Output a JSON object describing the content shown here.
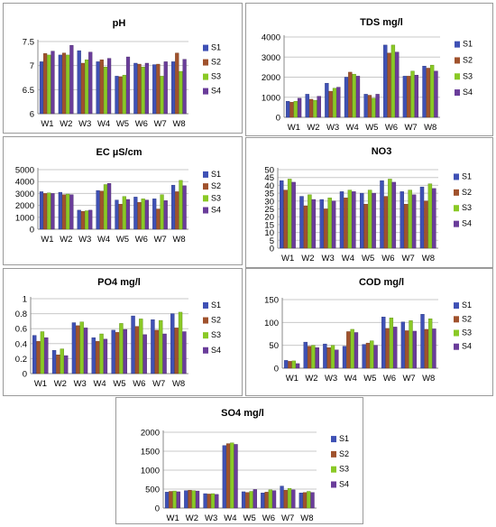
{
  "series_colors": [
    "#3f51b5",
    "#a0522d",
    "#8ac926",
    "#6a3d9a"
  ],
  "chart_data": [
    {
      "id": "ph",
      "type": "bar",
      "title": "pH",
      "categories": [
        "W1",
        "W2",
        "W3",
        "W4",
        "W5",
        "W6",
        "W7",
        "W8"
      ],
      "ylim": [
        6,
        7.5
      ],
      "yticks": [
        "6",
        "6.5",
        "7",
        "7.5"
      ],
      "ytick_values": [
        6,
        6.5,
        7,
        7.5
      ],
      "series": [
        {
          "name": "S1",
          "values": [
            7.08,
            7.22,
            7.31,
            7.08,
            6.78,
            7.05,
            7.02,
            7.08
          ]
        },
        {
          "name": "S2",
          "values": [
            7.25,
            7.26,
            7.05,
            7.12,
            6.77,
            7.03,
            7.03,
            7.26
          ]
        },
        {
          "name": "S3",
          "values": [
            7.22,
            7.22,
            7.12,
            6.97,
            6.8,
            6.97,
            6.78,
            6.88
          ]
        },
        {
          "name": "S4",
          "values": [
            7.3,
            7.42,
            7.28,
            7.15,
            7.18,
            7.05,
            7.08,
            7.13
          ]
        }
      ],
      "legend": "right"
    },
    {
      "id": "tds",
      "type": "bar",
      "title": "TDS  mg/l",
      "categories": [
        "W1",
        "W2",
        "W3",
        "W4",
        "W5",
        "W6",
        "W7",
        "W8"
      ],
      "ylim": [
        0,
        4000
      ],
      "yticks": [
        "0",
        "1000",
        "2000",
        "3000",
        "4000"
      ],
      "ytick_values": [
        0,
        1000,
        2000,
        3000,
        4000
      ],
      "series": [
        {
          "name": "S1",
          "values": [
            800,
            1150,
            1700,
            2000,
            1150,
            3600,
            2050,
            2550
          ]
        },
        {
          "name": "S2",
          "values": [
            750,
            900,
            1300,
            2250,
            1100,
            3200,
            2050,
            2450
          ]
        },
        {
          "name": "S3",
          "values": [
            800,
            850,
            1450,
            2150,
            950,
            3600,
            2300,
            2600
          ]
        },
        {
          "name": "S4",
          "values": [
            950,
            1050,
            1500,
            2050,
            1150,
            3250,
            2100,
            2300
          ]
        }
      ],
      "legend": "right"
    },
    {
      "id": "ec",
      "type": "bar",
      "title": "EC  µS/cm",
      "categories": [
        "W1",
        "W2",
        "W3",
        "W4",
        "W5",
        "W6",
        "W7",
        "W8"
      ],
      "ylim": [
        0,
        5000
      ],
      "yticks": [
        "0",
        "1000",
        "2000",
        "3000",
        "4000",
        "5000"
      ],
      "ytick_values": [
        0,
        1000,
        2000,
        3000,
        4000,
        5000
      ],
      "series": [
        {
          "name": "S1",
          "values": [
            3150,
            3100,
            1600,
            3250,
            2450,
            2700,
            2550,
            3700
          ]
        },
        {
          "name": "S2",
          "values": [
            3000,
            2900,
            1500,
            3200,
            2100,
            2250,
            1700,
            3150
          ]
        },
        {
          "name": "S3",
          "values": [
            3050,
            2950,
            1550,
            3750,
            2750,
            2550,
            2900,
            4100
          ]
        },
        {
          "name": "S4",
          "values": [
            3000,
            2900,
            1600,
            3850,
            2500,
            2450,
            2400,
            3650
          ]
        }
      ],
      "legend": "right"
    },
    {
      "id": "no3",
      "type": "bar",
      "title": "NO3",
      "categories": [
        "W1",
        "W2",
        "W3",
        "W4",
        "W5",
        "W6",
        "W7",
        "W8"
      ],
      "ylim": [
        0,
        50
      ],
      "yticks": [
        "0",
        "5",
        "10",
        "15",
        "20",
        "25",
        "30",
        "35",
        "40",
        "45",
        "50"
      ],
      "ytick_values": [
        0,
        5,
        10,
        15,
        20,
        25,
        30,
        35,
        40,
        45,
        50
      ],
      "series": [
        {
          "name": "S1",
          "values": [
            43,
            33,
            31,
            36,
            35,
            43,
            36,
            39
          ]
        },
        {
          "name": "S2",
          "values": [
            37,
            27,
            25,
            32,
            28,
            33,
            28,
            30
          ]
        },
        {
          "name": "S3",
          "values": [
            44,
            34,
            32,
            37,
            37,
            44,
            37,
            41
          ]
        },
        {
          "name": "S4",
          "values": [
            42,
            31,
            30,
            36,
            35,
            42,
            34,
            38
          ]
        }
      ],
      "legend": "right"
    },
    {
      "id": "po4",
      "type": "bar",
      "title": "PO4  mg/l",
      "categories": [
        "W1",
        "W2",
        "W3",
        "W4",
        "W5",
        "W6",
        "W7",
        "W8"
      ],
      "ylim": [
        0,
        1
      ],
      "yticks": [
        "0",
        "0.2",
        "0.4",
        "0.6",
        "0.8",
        "1"
      ],
      "ytick_values": [
        0,
        0.2,
        0.4,
        0.6,
        0.8,
        1
      ],
      "series": [
        {
          "name": "S1",
          "values": [
            0.51,
            0.31,
            0.68,
            0.48,
            0.58,
            0.77,
            0.72,
            0.8
          ]
        },
        {
          "name": "S2",
          "values": [
            0.43,
            0.25,
            0.64,
            0.43,
            0.55,
            0.63,
            0.58,
            0.61
          ]
        },
        {
          "name": "S3",
          "values": [
            0.56,
            0.33,
            0.69,
            0.53,
            0.67,
            0.73,
            0.71,
            0.82
          ]
        },
        {
          "name": "S4",
          "values": [
            0.48,
            0.24,
            0.61,
            0.46,
            0.59,
            0.52,
            0.53,
            0.56
          ]
        }
      ],
      "legend": "right"
    },
    {
      "id": "cod",
      "type": "bar",
      "title": "COD  mg/l",
      "categories": [
        "W1",
        "W2",
        "W3",
        "W4",
        "W5",
        "W6",
        "W7",
        "W8"
      ],
      "ylim": [
        0,
        150
      ],
      "yticks": [
        "0",
        "50",
        "100",
        "150"
      ],
      "ytick_values": [
        0,
        50,
        100,
        150
      ],
      "series": [
        {
          "name": "S1",
          "values": [
            17,
            57,
            53,
            48,
            52,
            112,
            101,
            118
          ]
        },
        {
          "name": "S2",
          "values": [
            15,
            48,
            45,
            80,
            55,
            87,
            82,
            85
          ]
        },
        {
          "name": "S3",
          "values": [
            16,
            50,
            50,
            85,
            60,
            110,
            104,
            108
          ]
        },
        {
          "name": "S4",
          "values": [
            10,
            45,
            40,
            78,
            50,
            90,
            81,
            86
          ]
        }
      ],
      "legend": "right"
    },
    {
      "id": "so4",
      "type": "bar",
      "title": "SO4  mg/l",
      "categories": [
        "W1",
        "W2",
        "W3",
        "W4",
        "W5",
        "W6",
        "W7",
        "W8"
      ],
      "ylim": [
        0,
        2000
      ],
      "yticks": [
        "0",
        "500",
        "1000",
        "1500",
        "2000"
      ],
      "ytick_values": [
        0,
        500,
        1000,
        1500,
        2000
      ],
      "series": [
        {
          "name": "S1",
          "values": [
            420,
            460,
            380,
            1650,
            430,
            400,
            580,
            400
          ]
        },
        {
          "name": "S2",
          "values": [
            440,
            470,
            370,
            1700,
            410,
            420,
            470,
            410
          ]
        },
        {
          "name": "S3",
          "values": [
            450,
            460,
            380,
            1720,
            440,
            480,
            520,
            440
          ]
        },
        {
          "name": "S4",
          "values": [
            430,
            450,
            360,
            1680,
            490,
            460,
            480,
            410
          ]
        }
      ],
      "legend": "right"
    }
  ]
}
